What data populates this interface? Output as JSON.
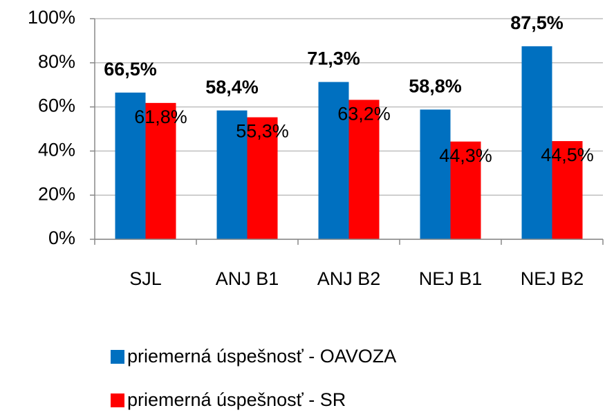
{
  "chart_data": {
    "type": "bar",
    "categories": [
      "SJL",
      "ANJ B1",
      "ANJ B2",
      "NEJ B1",
      "NEJ B2"
    ],
    "series": [
      {
        "name": "priemerná úspešnosť - OAVOZA",
        "color": "#0070c0",
        "values": [
          66.5,
          58.4,
          71.3,
          58.8,
          87.5
        ],
        "value_labels": [
          "66,5%",
          "58,4%",
          "71,3%",
          "58,8%",
          "87,5%"
        ]
      },
      {
        "name": "priemerná úspešnosť - SR",
        "color": "#ff0000",
        "values": [
          61.8,
          55.3,
          63.2,
          44.3,
          44.5
        ],
        "value_labels": [
          "61,8%",
          "55,3%",
          "63,2%",
          "44,3%",
          "44,5%"
        ]
      }
    ],
    "ylim": [
      0,
      100
    ],
    "yticks": [
      {
        "value": 0,
        "label": "0%"
      },
      {
        "value": 20,
        "label": "20%"
      },
      {
        "value": 40,
        "label": "40%"
      },
      {
        "value": 60,
        "label": "60%"
      },
      {
        "value": 80,
        "label": "80%"
      },
      {
        "value": 100,
        "label": "100%"
      }
    ],
    "grid": true,
    "legend": "bottom"
  }
}
